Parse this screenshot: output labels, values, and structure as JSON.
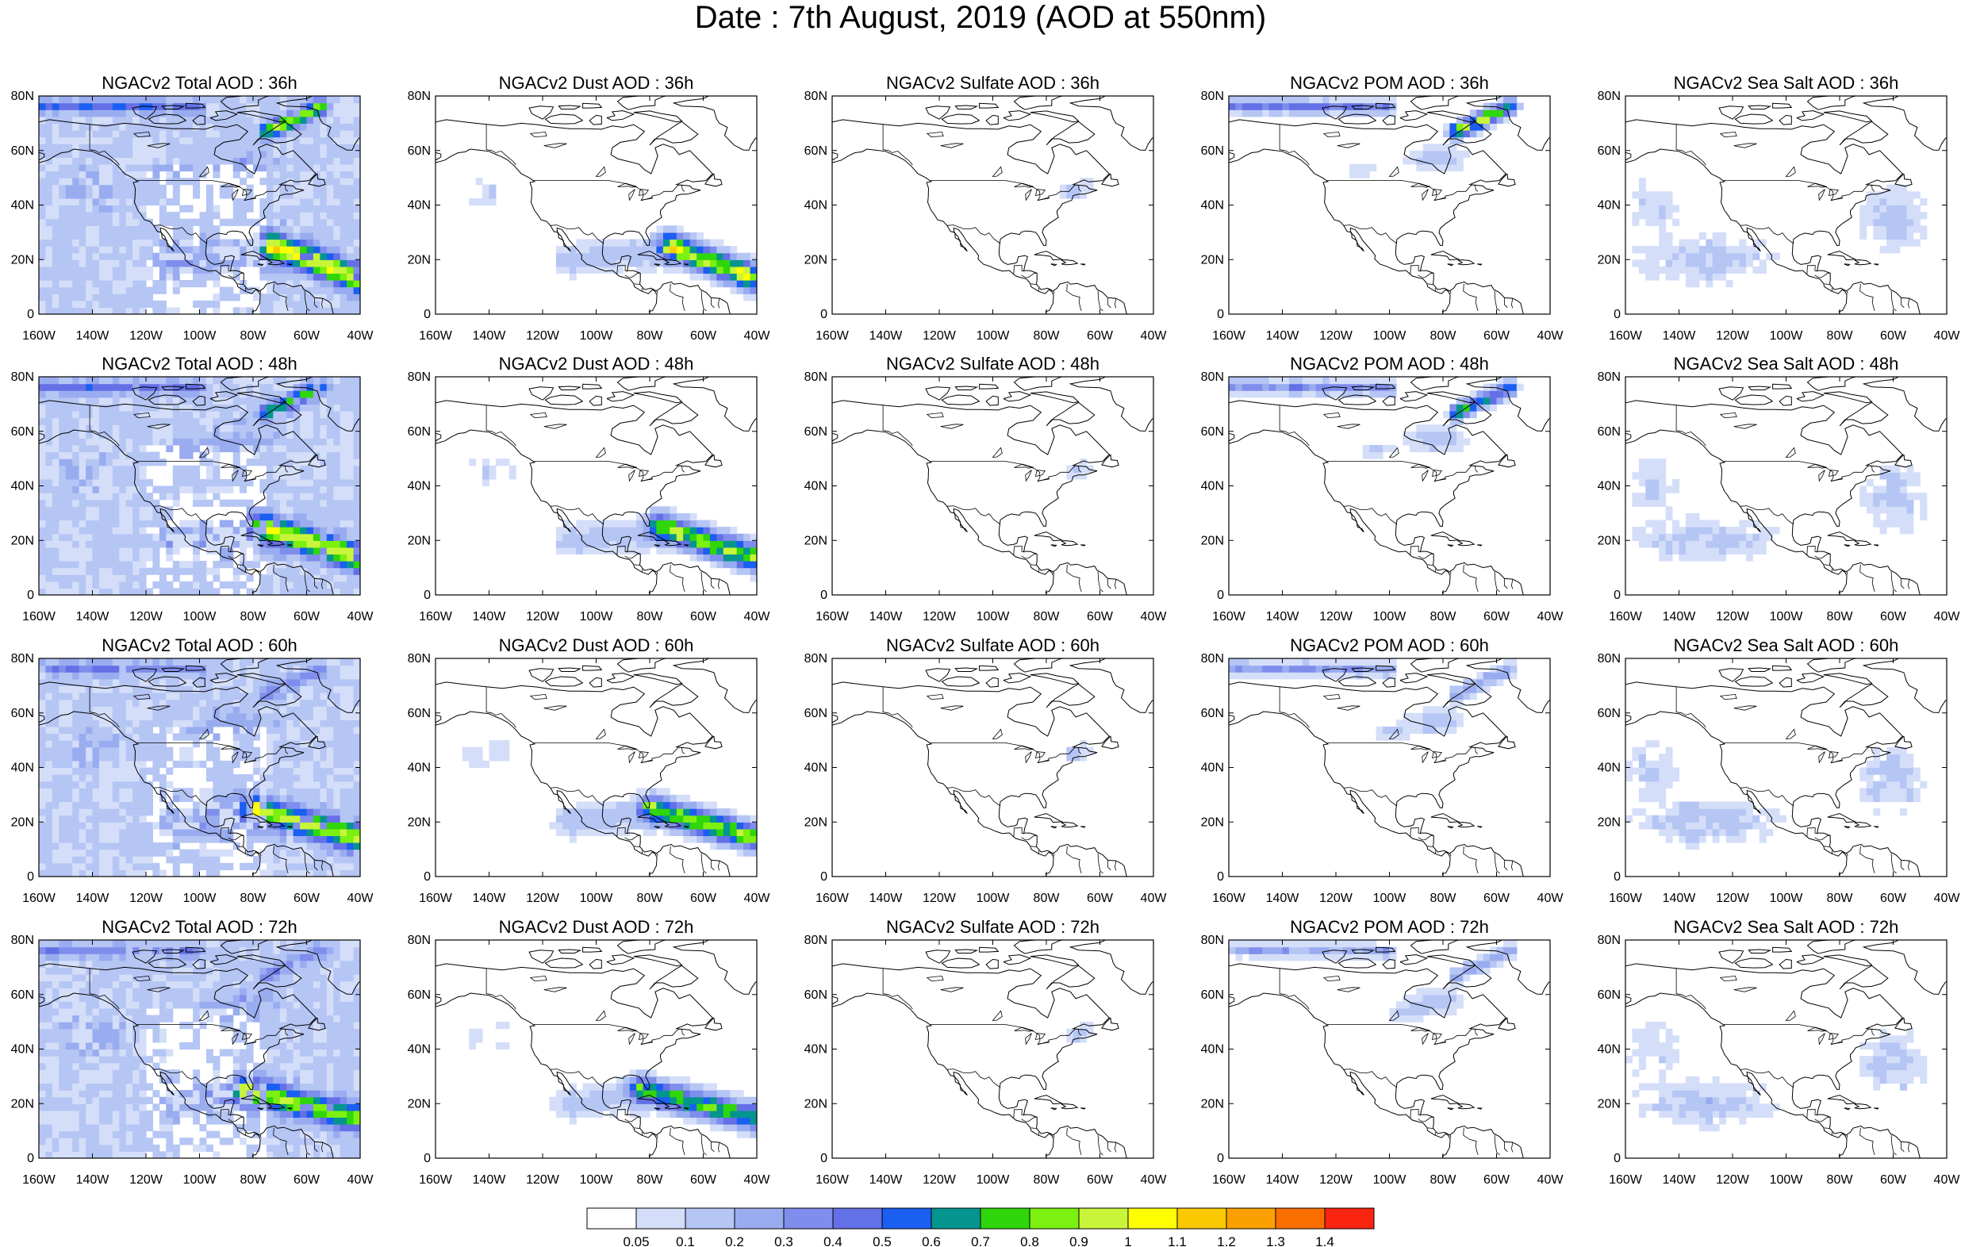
{
  "title": "Date : 7th August, 2019 (AOD at 550nm)",
  "lat_ticks": [
    "0",
    "20N",
    "40N",
    "60N",
    "80N"
  ],
  "lon_ticks": [
    "160W",
    "140W",
    "120W",
    "100W",
    "80W",
    "60W",
    "40W"
  ],
  "colorbar": {
    "labels": [
      "0.05",
      "0.1",
      "0.2",
      "0.3",
      "0.4",
      "0.5",
      "0.6",
      "0.7",
      "0.8",
      "0.9",
      "1",
      "1.1",
      "1.2",
      "1.3",
      "1.4"
    ],
    "colors": [
      "#ffffff",
      "#d4def9",
      "#b5c5f4",
      "#99acf0",
      "#7f8eec",
      "#6470e6",
      "#1a5ef2",
      "#05958f",
      "#2fd60a",
      "#7cf010",
      "#c8f53a",
      "#ffff00",
      "#fbc902",
      "#fba000",
      "#fb6f00",
      "#fa2510"
    ]
  },
  "panels": [
    {
      "title": "NGACv2 Total AOD : 36h",
      "variable": "total",
      "forecast_hour": 36
    },
    {
      "title": "NGACv2 Dust AOD : 36h",
      "variable": "dust",
      "forecast_hour": 36
    },
    {
      "title": "NGACv2 Sulfate AOD : 36h",
      "variable": "sulfate",
      "forecast_hour": 36
    },
    {
      "title": "NGACv2 POM AOD : 36h",
      "variable": "pom",
      "forecast_hour": 36
    },
    {
      "title": "NGACv2 Sea Salt AOD : 36h",
      "variable": "seasalt",
      "forecast_hour": 36
    },
    {
      "title": "NGACv2 Total AOD : 48h",
      "variable": "total",
      "forecast_hour": 48
    },
    {
      "title": "NGACv2 Dust AOD : 48h",
      "variable": "dust",
      "forecast_hour": 48
    },
    {
      "title": "NGACv2 Sulfate AOD : 48h",
      "variable": "sulfate",
      "forecast_hour": 48
    },
    {
      "title": "NGACv2 POM AOD : 48h",
      "variable": "pom",
      "forecast_hour": 48
    },
    {
      "title": "NGACv2 Sea Salt AOD : 48h",
      "variable": "seasalt",
      "forecast_hour": 48
    },
    {
      "title": "NGACv2 Total AOD : 60h",
      "variable": "total",
      "forecast_hour": 60
    },
    {
      "title": "NGACv2 Dust AOD : 60h",
      "variable": "dust",
      "forecast_hour": 60
    },
    {
      "title": "NGACv2 Sulfate AOD : 60h",
      "variable": "sulfate",
      "forecast_hour": 60
    },
    {
      "title": "NGACv2 POM AOD : 60h",
      "variable": "pom",
      "forecast_hour": 60
    },
    {
      "title": "NGACv2 Sea Salt AOD : 60h",
      "variable": "seasalt",
      "forecast_hour": 60
    },
    {
      "title": "NGACv2 Total AOD : 72h",
      "variable": "total",
      "forecast_hour": 72
    },
    {
      "title": "NGACv2 Dust AOD : 72h",
      "variable": "dust",
      "forecast_hour": 72
    },
    {
      "title": "NGACv2 Sulfate AOD : 72h",
      "variable": "sulfate",
      "forecast_hour": 72
    },
    {
      "title": "NGACv2 POM AOD : 72h",
      "variable": "pom",
      "forecast_hour": 72
    },
    {
      "title": "NGACv2 Sea Salt  AOD : 72h",
      "variable": "seasalt",
      "forecast_hour": 72
    }
  ]
}
